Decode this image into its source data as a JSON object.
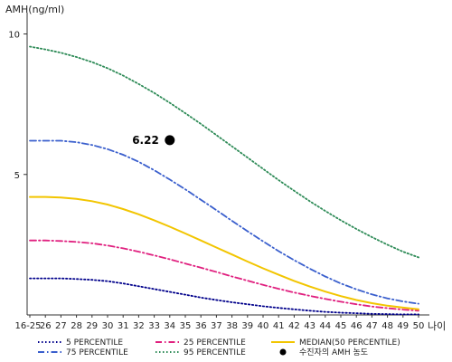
{
  "chart_data": {
    "type": "line",
    "ylabel": "AMH(ng/ml)",
    "xlabel": "나이",
    "ylim": [
      0,
      10.5
    ],
    "y_ticks": [
      10,
      5
    ],
    "categories": [
      "16-25",
      "26",
      "27",
      "28",
      "29",
      "30",
      "31",
      "32",
      "33",
      "34",
      "35",
      "36",
      "37",
      "38",
      "39",
      "40",
      "41",
      "42",
      "43",
      "44",
      "45",
      "46",
      "47",
      "48",
      "49",
      "50"
    ],
    "series": [
      {
        "name": "5 PERCENTILE",
        "color": "#00008b",
        "dash": "dot",
        "values": [
          1.3,
          1.3,
          1.3,
          1.28,
          1.25,
          1.2,
          1.12,
          1.02,
          0.92,
          0.82,
          0.72,
          0.62,
          0.53,
          0.45,
          0.38,
          0.31,
          0.25,
          0.2,
          0.15,
          0.11,
          0.08,
          0.06,
          0.04,
          0.03,
          0.02,
          0.02
        ]
      },
      {
        "name": "25 PERCENTILE",
        "color": "#e0207f",
        "dash": "dashdot",
        "values": [
          2.65,
          2.65,
          2.63,
          2.6,
          2.55,
          2.47,
          2.37,
          2.25,
          2.12,
          1.98,
          1.83,
          1.68,
          1.53,
          1.37,
          1.22,
          1.07,
          0.93,
          0.8,
          0.68,
          0.57,
          0.47,
          0.38,
          0.3,
          0.24,
          0.19,
          0.15
        ]
      },
      {
        "name": "MEDIAN(50 PERCENTILE)",
        "color": "#f2c500",
        "dash": "solid",
        "values": [
          4.2,
          4.2,
          4.18,
          4.13,
          4.05,
          3.93,
          3.77,
          3.58,
          3.37,
          3.14,
          2.9,
          2.65,
          2.4,
          2.15,
          1.9,
          1.66,
          1.43,
          1.21,
          1.01,
          0.83,
          0.67,
          0.53,
          0.42,
          0.33,
          0.26,
          0.2
        ]
      },
      {
        "name": "75 PERCENTILE",
        "color": "#3a5fcd",
        "dash": "dashdot",
        "values": [
          6.2,
          6.2,
          6.2,
          6.15,
          6.05,
          5.9,
          5.7,
          5.45,
          5.15,
          4.82,
          4.47,
          4.1,
          3.73,
          3.35,
          2.98,
          2.62,
          2.27,
          1.95,
          1.65,
          1.37,
          1.12,
          0.91,
          0.73,
          0.59,
          0.48,
          0.4
        ]
      },
      {
        "name": "95 PERCENTILE",
        "color": "#2e8b57",
        "dash": "dot",
        "values": [
          9.55,
          9.45,
          9.33,
          9.18,
          9.0,
          8.78,
          8.52,
          8.22,
          7.9,
          7.55,
          7.18,
          6.8,
          6.4,
          6.0,
          5.6,
          5.2,
          4.8,
          4.42,
          4.05,
          3.7,
          3.37,
          3.06,
          2.77,
          2.5,
          2.25,
          2.05
        ]
      }
    ],
    "points": [
      {
        "name": "수진자의 AMH 농도",
        "x": "34",
        "y": 6.22,
        "label": "6.22",
        "color": "#000000"
      }
    ],
    "grid": false,
    "legend_position": "bottom"
  }
}
